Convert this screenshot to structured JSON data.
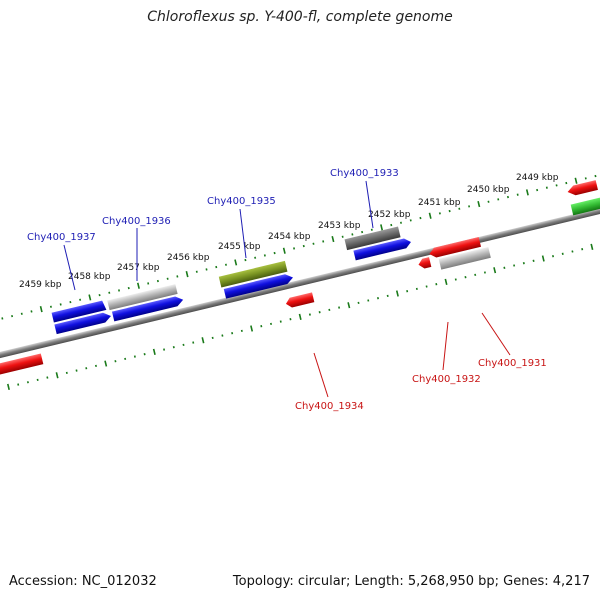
{
  "title": "Chloroflexus sp. Y-400-fl, complete genome",
  "footer": {
    "accession": "Accession: NC_012032",
    "summary": "Topology: circular; Length: 5,268,950 bp; Genes: 4,217"
  },
  "colors": {
    "forward_cds": "#1010e0",
    "forward_label": "#1e1eb4",
    "reverse_cds": "#ee1111",
    "reverse_label": "#c81414",
    "pseudo": "#b4b4b4",
    "dark_gene": "#6a6a6a",
    "rna": "#7a9422",
    "other": "#33bb33",
    "tick": "#1a7a1a",
    "backbone": "#7c7c7c"
  },
  "scale_labels": [
    "2459 kbp",
    "2458 kbp",
    "2457 kbp",
    "2456 kbp",
    "2455 kbp",
    "2454 kbp",
    "2453 kbp",
    "2452 kbp",
    "2451 kbp",
    "2450 kbp",
    "2449 kbp"
  ],
  "gene_labels": {
    "forward": [
      "Chy400_1937",
      "Chy400_1936",
      "Chy400_1935",
      "Chy400_1933"
    ],
    "reverse": [
      "Chy400_1934",
      "Chy400_1932",
      "Chy400_1931"
    ]
  }
}
